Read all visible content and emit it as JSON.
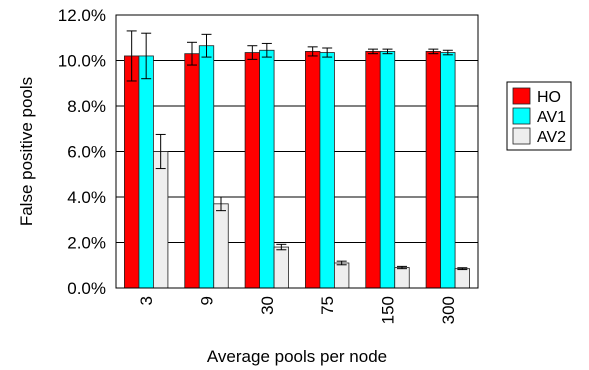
{
  "chart_data": {
    "type": "bar",
    "title": "",
    "xlabel": "Average pools per node",
    "ylabel": "False positive pools",
    "categories": [
      "3",
      "9",
      "30",
      "75",
      "150",
      "300"
    ],
    "ylim": [
      0,
      12
    ],
    "yticks": [
      0,
      2,
      4,
      6,
      8,
      10,
      12
    ],
    "ytick_labels": [
      "0.0%",
      "2.0%",
      "4.0%",
      "6.0%",
      "8.0%",
      "10.0%",
      "12.0%"
    ],
    "grid": "horizontal",
    "legend_position": "right",
    "series": [
      {
        "name": "HO",
        "color": "#ff0000",
        "values": [
          10.2,
          10.3,
          10.35,
          10.4,
          10.4,
          10.4
        ],
        "errors": [
          1.1,
          0.5,
          0.3,
          0.2,
          0.1,
          0.1
        ]
      },
      {
        "name": "AV1",
        "color": "#00ffff",
        "values": [
          10.2,
          10.65,
          10.45,
          10.35,
          10.4,
          10.35
        ],
        "errors": [
          1.0,
          0.5,
          0.3,
          0.2,
          0.1,
          0.1
        ]
      },
      {
        "name": "AV2",
        "color": "#eeeeee",
        "values": [
          6.0,
          3.7,
          1.8,
          1.1,
          0.9,
          0.85
        ],
        "errors": [
          0.75,
          0.3,
          0.12,
          0.08,
          0.05,
          0.04
        ]
      }
    ]
  }
}
